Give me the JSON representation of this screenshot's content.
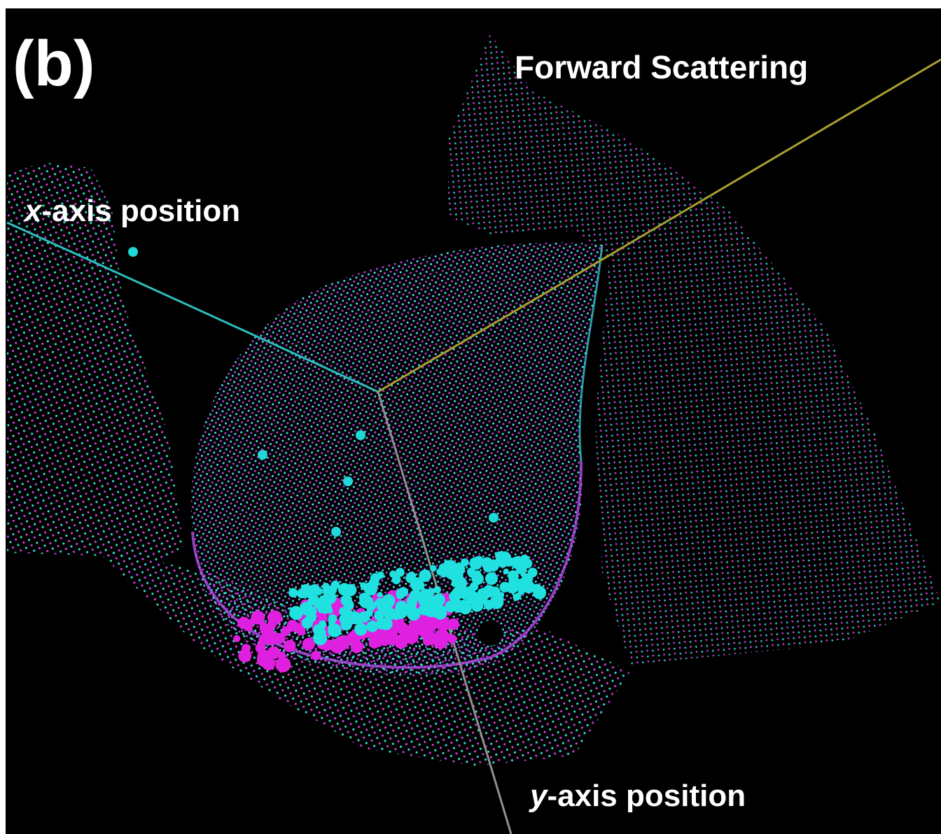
{
  "panel_label": "(b)",
  "forward_label": "Forward Scattering",
  "x_axis_label": {
    "variable": "x",
    "text": "-axis position"
  },
  "y_axis_label": {
    "variable": "y",
    "text": "-axis position"
  }
}
